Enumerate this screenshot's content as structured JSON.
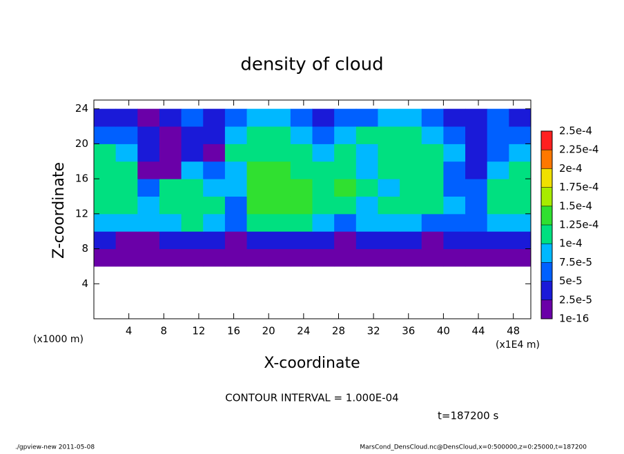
{
  "chart_data": {
    "type": "heatmap",
    "title": "density of cloud",
    "x_label": "X-coordinate",
    "y_label": "Z-coordinate",
    "y_unit_note": "(x1000 m)",
    "x_unit_note": "(x1E4 m)",
    "contour_note": "CONTOUR INTERVAL = 1.000E-04",
    "time_note": "t=187200 s",
    "footer_left": "./gpview-new  2011-05-08",
    "footer_right": "MarsCond_DensCloud.nc@DensCloud,x=0:500000,z=0:25000,t=187200",
    "xlim": [
      0,
      50
    ],
    "xticks": [
      4,
      8,
      12,
      16,
      20,
      24,
      28,
      32,
      36,
      40,
      44,
      48
    ],
    "ylim": [
      0,
      25
    ],
    "yticks": [
      4,
      8,
      12,
      16,
      20,
      24
    ],
    "x_edges": [
      0,
      2.5,
      5,
      7.5,
      10,
      12.5,
      15,
      17.5,
      20,
      22.5,
      25,
      27.5,
      30,
      32.5,
      35,
      37.5,
      40,
      42.5,
      45,
      47.5,
      50
    ],
    "z_edges": [
      0,
      2,
      4,
      6,
      8,
      10,
      12,
      14,
      16,
      18,
      20,
      22,
      24
    ],
    "values": [
      [
        null,
        null,
        null,
        null,
        null,
        null,
        null,
        null,
        null,
        null,
        null,
        null,
        null,
        null,
        null,
        null,
        null,
        null,
        null,
        null
      ],
      [
        null,
        null,
        null,
        null,
        null,
        null,
        null,
        null,
        null,
        null,
        null,
        null,
        null,
        null,
        null,
        null,
        null,
        null,
        null,
        null
      ],
      [
        null,
        null,
        null,
        null,
        null,
        null,
        null,
        null,
        null,
        null,
        null,
        null,
        null,
        null,
        null,
        null,
        null,
        null,
        null,
        null
      ],
      [
        1e-16,
        1e-16,
        1e-16,
        1e-16,
        1e-16,
        1e-16,
        1e-16,
        1e-16,
        1e-16,
        1e-16,
        1e-16,
        1e-16,
        1e-16,
        1e-16,
        1e-16,
        1e-16,
        1e-16,
        1e-16,
        1e-16,
        1e-16
      ],
      [
        3e-05,
        2e-05,
        2e-05,
        3e-05,
        4e-05,
        3e-05,
        2e-05,
        3e-05,
        4e-05,
        3e-05,
        3e-05,
        2e-05,
        3e-05,
        4e-05,
        3e-05,
        2e-05,
        3e-05,
        3e-05,
        4e-05,
        3e-05
      ],
      [
        9e-05,
        8e-05,
        8e-05,
        9e-05,
        0.0001,
        8e-05,
        6e-05,
        0.00012,
        0.00011,
        0.00011,
        9e-05,
        7e-05,
        8e-05,
        9e-05,
        8e-05,
        7e-05,
        6e-05,
        5e-05,
        9e-05,
        8e-05
      ],
      [
        0.00011,
        0.0001,
        9e-05,
        0.00011,
        0.00012,
        0.00011,
        7e-05,
        0.00013,
        0.00014,
        0.00013,
        0.00012,
        0.00011,
        9e-05,
        0.00011,
        0.00012,
        0.0001,
        8e-05,
        6e-05,
        0.00011,
        0.00011
      ],
      [
        0.00012,
        0.00011,
        7e-05,
        0.0001,
        0.00011,
        9e-05,
        8e-05,
        0.00013,
        0.00014,
        0.00013,
        0.00012,
        0.00013,
        0.0001,
        9e-05,
        0.00012,
        0.00011,
        7e-05,
        5e-05,
        0.00011,
        0.00012
      ],
      [
        0.00011,
        0.0001,
        2e-05,
        1e-16,
        8e-05,
        6e-05,
        9e-05,
        0.00013,
        0.00013,
        0.00012,
        0.00011,
        0.00012,
        8e-05,
        0.0001,
        0.00011,
        0.00011,
        6e-05,
        3e-05,
        9e-05,
        0.00011
      ],
      [
        0.0001,
        9e-05,
        4e-05,
        1e-16,
        3e-05,
        2e-05,
        0.00011,
        0.00012,
        0.00012,
        0.00011,
        9e-05,
        0.00011,
        9e-05,
        0.00011,
        0.00011,
        0.0001,
        8e-05,
        4e-05,
        7e-05,
        8e-05
      ],
      [
        6e-05,
        5e-05,
        3e-05,
        2e-05,
        4e-05,
        3e-05,
        9e-05,
        0.00011,
        0.0001,
        8e-05,
        6e-05,
        9e-05,
        0.0001,
        0.00011,
        0.0001,
        8e-05,
        5e-05,
        3e-05,
        6e-05,
        5e-05
      ],
      [
        4e-05,
        3e-05,
        2e-05,
        3e-05,
        5e-05,
        3e-05,
        6e-05,
        8e-05,
        8e-05,
        5e-05,
        4e-05,
        6e-05,
        7e-05,
        9e-05,
        8e-05,
        6e-05,
        4e-05,
        3e-05,
        5e-05,
        4e-05
      ]
    ],
    "levels": [
      1e-16,
      {
        "value": 2.5e-05,
        "label": "2.5e-5"
      },
      {
        "value": 5e-05,
        "label": "5e-5"
      },
      {
        "value": 7.5e-05,
        "label": "7.5e-5"
      },
      {
        "value": 0.0001,
        "label": "1e-4"
      },
      {
        "value": 0.000125,
        "label": "1.25e-4"
      },
      {
        "value": 0.00015,
        "label": "1.5e-4"
      },
      {
        "value": 0.000175,
        "label": "1.75e-4"
      },
      {
        "value": 0.0002,
        "label": "2e-4"
      },
      {
        "value": 0.000225,
        "label": "2.25e-4"
      },
      {
        "value": 0.00025,
        "label": "2.5e-4"
      }
    ],
    "colors": [
      "#6a00a8",
      "#1a1ad8",
      "#0060ff",
      "#00b8ff",
      "#00e080",
      "#30e030",
      "#a8ec00",
      "#f0e000",
      "#ff7800",
      "#ff2020"
    ]
  }
}
